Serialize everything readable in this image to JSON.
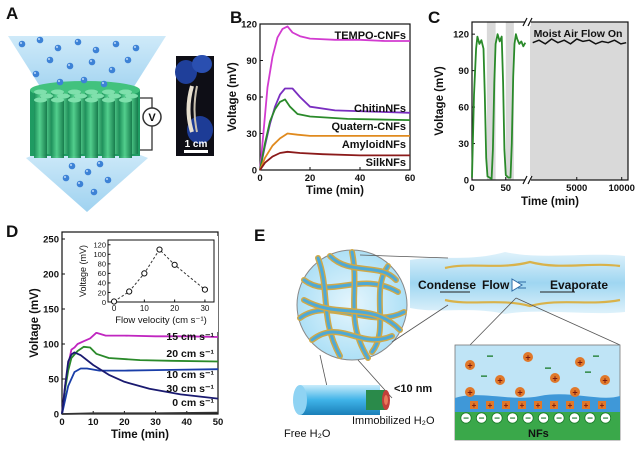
{
  "panels": {
    "A": "A",
    "B": "B",
    "C": "C",
    "D": "D",
    "E": "E"
  },
  "panelA": {
    "meter_symbol": "V",
    "scale_bar": "1 cm",
    "colors": {
      "water": "#3d82d6",
      "membrane": "#2bb673",
      "stream": "#bfe3f7",
      "photo_bg": "#101018"
    }
  },
  "panelE": {
    "condense": "Condense",
    "flow": "Flow",
    "evaporate": "Evaporate",
    "size_label": "<10 nm",
    "free_water": "Free H₂O",
    "immobilized_water": "Immobilized H₂O",
    "nfs": "NFs",
    "plus_sign": "+",
    "minus_sign": "−"
  },
  "chart_data": [
    {
      "id": "B",
      "type": "line",
      "xlabel": "Time (min)",
      "ylabel": "Voltage (mV)",
      "xlim": [
        0,
        60
      ],
      "ylim": [
        0,
        120
      ],
      "xticks": [
        "0",
        "20",
        "40",
        "60"
      ],
      "yticks": [
        "0",
        "30",
        "60",
        "90",
        "120"
      ],
      "series": [
        {
          "name": "TEMPO-CNFs",
          "color": "#d23bd0",
          "points": [
            [
              0,
              0
            ],
            [
              1,
              22
            ],
            [
              2,
              45
            ],
            [
              3,
              68
            ],
            [
              5,
              93
            ],
            [
              7,
              109
            ],
            [
              9,
              116
            ],
            [
              11,
              118
            ],
            [
              13,
              113
            ],
            [
              16,
              110
            ],
            [
              20,
              108
            ],
            [
              30,
              107
            ],
            [
              40,
              107
            ],
            [
              50,
              106
            ],
            [
              60,
              106
            ]
          ]
        },
        {
          "name": "ChitinNFs",
          "color": "#7a2ec0",
          "points": [
            [
              0,
              0
            ],
            [
              2,
              20
            ],
            [
              4,
              38
            ],
            [
              6,
              52
            ],
            [
              8,
              62
            ],
            [
              10,
              67
            ],
            [
              13,
              67
            ],
            [
              16,
              60
            ],
            [
              20,
              52
            ],
            [
              30,
              49
            ],
            [
              45,
              48
            ],
            [
              60,
              47
            ]
          ]
        },
        {
          "name": "Quatern-CNFs",
          "color": "#2a8a2a",
          "points": [
            [
              0,
              0
            ],
            [
              2,
              22
            ],
            [
              4,
              40
            ],
            [
              6,
              50
            ],
            [
              8,
              56
            ],
            [
              10,
              58
            ],
            [
              12,
              52
            ],
            [
              15,
              46
            ],
            [
              20,
              44
            ],
            [
              35,
              42
            ],
            [
              60,
              41
            ]
          ]
        },
        {
          "name": "AmyloidNFs",
          "color": "#e08a1e",
          "points": [
            [
              0,
              0
            ],
            [
              2,
              10
            ],
            [
              5,
              20
            ],
            [
              8,
              26
            ],
            [
              11,
              30
            ],
            [
              15,
              29
            ],
            [
              20,
              28
            ],
            [
              40,
              28
            ],
            [
              60,
              28
            ]
          ]
        },
        {
          "name": "SilkNFs",
          "color": "#8b1a1a",
          "points": [
            [
              0,
              0
            ],
            [
              2,
              6
            ],
            [
              5,
              11
            ],
            [
              8,
              14
            ],
            [
              11,
              15
            ],
            [
              16,
              14
            ],
            [
              25,
              13
            ],
            [
              40,
              12
            ],
            [
              60,
              12
            ]
          ]
        }
      ]
    },
    {
      "id": "C",
      "type": "line",
      "xlabel": "Time (min)",
      "ylabel": "Voltage (mV)",
      "annotation": "Moist Air Flow On",
      "ylim": [
        0,
        130
      ],
      "yticks": [
        "0",
        "30",
        "60",
        "90",
        "120"
      ],
      "xticks": [
        "0",
        "50",
        "5000",
        "10000"
      ],
      "broken_axis": true,
      "shaded_intervals": [
        [
          22,
          35
        ],
        [
          50,
          62
        ]
      ],
      "color": "#2a8a2a",
      "segment1": {
        "xlim": [
          0,
          80
        ],
        "points": [
          [
            0,
            2
          ],
          [
            3,
            70
          ],
          [
            6,
            108
          ],
          [
            8,
            118
          ],
          [
            11,
            112
          ],
          [
            14,
            115
          ],
          [
            17,
            108
          ],
          [
            19,
            70
          ],
          [
            21,
            18
          ],
          [
            23,
            3
          ],
          [
            26,
            2
          ],
          [
            29,
            1
          ],
          [
            31,
            25
          ],
          [
            33,
            80
          ],
          [
            35,
            112
          ],
          [
            38,
            120
          ],
          [
            41,
            114
          ],
          [
            44,
            118
          ],
          [
            46,
            80
          ],
          [
            48,
            25
          ],
          [
            50,
            4
          ],
          [
            54,
            2
          ],
          [
            57,
            2
          ],
          [
            59,
            30
          ],
          [
            61,
            85
          ],
          [
            63,
            112
          ],
          [
            65,
            120
          ],
          [
            67,
            116
          ],
          [
            70,
            112
          ],
          [
            73,
            114
          ],
          [
            76,
            110
          ],
          [
            79,
            113
          ]
        ]
      },
      "segment2": {
        "xlim": [
          -200,
          10700
        ],
        "points": [
          [
            100,
            113
          ],
          [
            800,
            115
          ],
          [
            1500,
            112
          ],
          [
            2200,
            116
          ],
          [
            2900,
            113
          ],
          [
            3600,
            115
          ],
          [
            4300,
            112
          ],
          [
            5000,
            116
          ],
          [
            5700,
            114
          ],
          [
            6400,
            115
          ],
          [
            7100,
            112
          ],
          [
            7800,
            114
          ],
          [
            8500,
            113
          ],
          [
            9200,
            115
          ],
          [
            9900,
            112
          ],
          [
            10500,
            113
          ]
        ]
      }
    },
    {
      "id": "D",
      "type": "line",
      "xlabel": "Time (min)",
      "ylabel": "Voltage (mV)",
      "xlim": [
        0,
        50
      ],
      "ylim": [
        0,
        260
      ],
      "xticks": [
        "0",
        "10",
        "20",
        "30",
        "40",
        "50"
      ],
      "yticks": [
        "0",
        "50",
        "100",
        "150",
        "200",
        "250"
      ],
      "series": [
        {
          "name": "15 cm s⁻¹",
          "color": "#c026c0",
          "points": [
            [
              0,
              0
            ],
            [
              1,
              40
            ],
            [
              2,
              70
            ],
            [
              3,
              92
            ],
            [
              4,
              95
            ],
            [
              5,
              100
            ],
            [
              7,
              104
            ],
            [
              9,
              108
            ],
            [
              11,
              116
            ],
            [
              14,
              112
            ],
            [
              20,
              112
            ],
            [
              30,
              111
            ],
            [
              40,
              111
            ],
            [
              50,
              110
            ]
          ]
        },
        {
          "name": "20 cm s⁻¹",
          "color": "#2a8a2a",
          "points": [
            [
              0,
              0
            ],
            [
              1,
              35
            ],
            [
              2,
              62
            ],
            [
              3,
              80
            ],
            [
              5,
              90
            ],
            [
              7,
              96
            ],
            [
              9,
              95
            ],
            [
              11,
              86
            ],
            [
              15,
              80
            ],
            [
              25,
              77
            ],
            [
              35,
              76
            ],
            [
              50,
              75
            ]
          ]
        },
        {
          "name": "10 cm s⁻¹",
          "color": "#1a3ea8",
          "points": [
            [
              0,
              0
            ],
            [
              2,
              40
            ],
            [
              4,
              60
            ],
            [
              6,
              65
            ],
            [
              8,
              65
            ],
            [
              12,
              62
            ],
            [
              20,
              62
            ],
            [
              35,
              63
            ],
            [
              50,
              64
            ]
          ]
        },
        {
          "name": "30 cm s⁻¹",
          "color": "#1a1a70",
          "points": [
            [
              0,
              0
            ],
            [
              1,
              40
            ],
            [
              2,
              75
            ],
            [
              3,
              85
            ],
            [
              4,
              88
            ],
            [
              6,
              84
            ],
            [
              10,
              70
            ],
            [
              15,
              56
            ],
            [
              20,
              46
            ],
            [
              28,
              36
            ],
            [
              38,
              28
            ],
            [
              50,
              22
            ]
          ]
        },
        {
          "name": "0 cm s⁻¹",
          "color": "#333333",
          "points": [
            [
              0,
              0
            ],
            [
              10,
              1
            ],
            [
              30,
              1
            ],
            [
              50,
              2
            ]
          ]
        }
      ],
      "inset": {
        "xlabel": "Flow velocity (cm s⁻¹)",
        "ylabel": "Voltage (mV)",
        "xlim": [
          -2,
          33
        ],
        "ylim": [
          0,
          130
        ],
        "xticks": [
          "0",
          "10",
          "20",
          "30"
        ],
        "yticks": [
          "0",
          "20",
          "40",
          "60",
          "80",
          "100",
          "120"
        ],
        "points": [
          [
            0,
            1
          ],
          [
            5,
            22
          ],
          [
            10,
            60
          ],
          [
            15,
            110
          ],
          [
            20,
            78
          ],
          [
            30,
            26
          ]
        ]
      }
    }
  ]
}
